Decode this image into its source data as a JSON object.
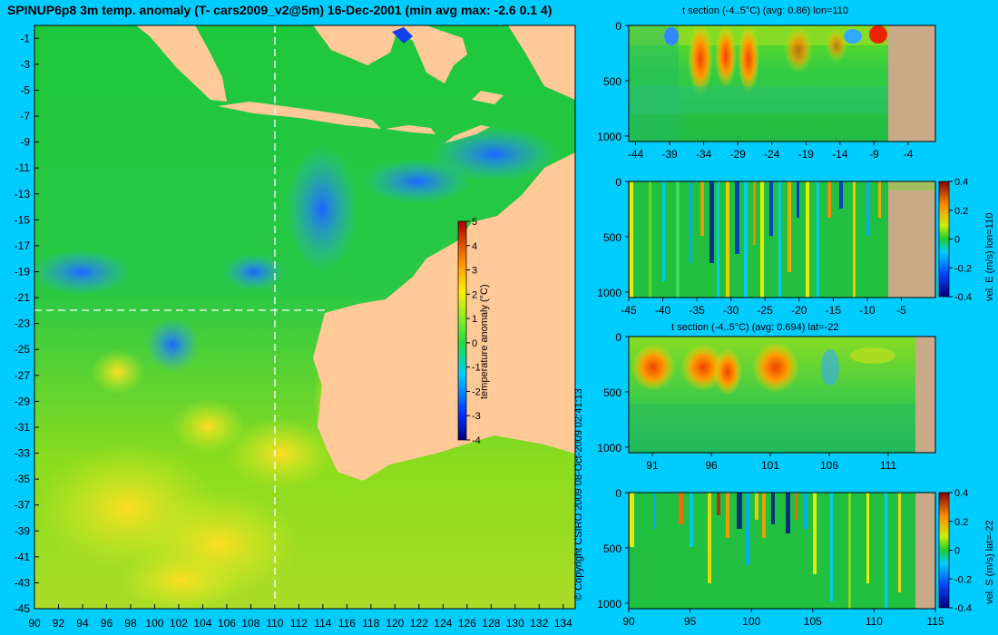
{
  "title": "SPINUP6p8 3m temp. anomaly (T- cars2009_v2@5m) 16-Dec-2001 (min avg max: -2.6 0.1 4)",
  "copyright": "© Copyright CSIRO 2009   08-Oct-2009 02:41:13",
  "colors": {
    "background": "#00ccff",
    "land": "#ffc998",
    "section_land": "#c8aa88",
    "ocean": "#1ec832",
    "warm": "#ffd21e",
    "cool": "#32aaff",
    "guide": "#ffffff"
  },
  "chart_data": [
    {
      "type": "heatmap",
      "kind": "map",
      "xlim": [
        90,
        135
      ],
      "ylim": [
        -45,
        0
      ],
      "xticks": [
        90,
        92,
        94,
        96,
        98,
        100,
        102,
        104,
        106,
        108,
        110,
        112,
        114,
        116,
        118,
        120,
        122,
        124,
        126,
        128,
        130,
        132,
        134
      ],
      "yticks": [
        -1,
        -3,
        -5,
        -7,
        -9,
        -11,
        -13,
        -15,
        -17,
        -19,
        -21,
        -23,
        -25,
        -27,
        -29,
        -31,
        -33,
        -35,
        -37,
        -39,
        -41,
        -43,
        -45
      ],
      "section_lon": 110,
      "section_lat": -22,
      "colorbar": {
        "label": "temperature anomaly (°C)",
        "range": [
          -4,
          5
        ],
        "ticks": [
          5,
          4,
          3,
          2,
          1,
          0,
          -1,
          -2,
          -3,
          -4
        ]
      }
    },
    {
      "type": "heatmap",
      "title": "t section (-4..5°C) (avg: 0.86) lon=110",
      "xlim": [
        -45,
        0
      ],
      "ylim": [
        0,
        1050
      ],
      "xticks": [
        -44,
        -39,
        -34,
        -29,
        -24,
        -19,
        -14,
        -9,
        -4
      ],
      "yticks": [
        0,
        500,
        1000
      ],
      "land_from": -8
    },
    {
      "type": "heatmap",
      "title": "",
      "xlim": [
        -45,
        0
      ],
      "ylim": [
        0,
        1050
      ],
      "xticks": [
        -45,
        -40,
        -35,
        -30,
        -25,
        -20,
        -15,
        -10,
        -5
      ],
      "yticks": [
        0,
        500,
        1000
      ],
      "land_from": -8,
      "colorbar": {
        "label": "vel. E (m/s) lon=110",
        "range": [
          -0.4,
          0.4
        ],
        "ticks": [
          0.4,
          0.2,
          0,
          -0.2,
          -0.4
        ]
      }
    },
    {
      "type": "heatmap",
      "title": "t section (-4..5°C) (avg: 0.694) lat=-22",
      "xlim": [
        89,
        115
      ],
      "ylim": [
        0,
        1050
      ],
      "xticks": [
        91,
        96,
        101,
        106,
        111
      ],
      "yticks": [
        0,
        500,
        1000
      ],
      "land_from": 113.8
    },
    {
      "type": "heatmap",
      "title": "",
      "xlim": [
        90,
        115
      ],
      "ylim": [
        0,
        1050
      ],
      "xticks": [
        90,
        95,
        100,
        105,
        110,
        115
      ],
      "yticks": [
        0,
        500,
        1000
      ],
      "land_from": 113.8,
      "colorbar": {
        "label": "vel. S (m/s) lat=-22",
        "range": [
          -0.4,
          0.4
        ],
        "ticks": [
          0.4,
          0.2,
          0,
          -0.2,
          -0.4
        ]
      }
    }
  ]
}
